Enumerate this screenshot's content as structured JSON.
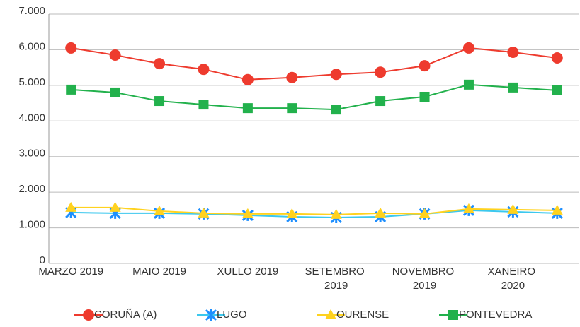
{
  "chart_data": {
    "type": "line",
    "categories": [
      "MARZO 2019",
      null,
      "MAIO 2019",
      null,
      "XULLO 2019",
      null,
      "SETEMBRO 2019",
      null,
      "NOVEMBRO 2019",
      null,
      "XANEIRO 2020",
      null
    ],
    "series": [
      {
        "name": "CORUÑA (A)",
        "color": "#ee3b2e",
        "marker": "circle",
        "values": [
          6050,
          5850,
          5610,
          5450,
          5160,
          5220,
          5310,
          5370,
          5550,
          6050,
          5930,
          5770
        ]
      },
      {
        "name": "LUGO",
        "color": "#1e8fff",
        "marker": "x",
        "values": [
          1430,
          1410,
          1410,
          1390,
          1350,
          1310,
          1290,
          1310,
          1390,
          1490,
          1450,
          1410
        ]
      },
      {
        "name": "OURENSE",
        "color": "#ffd21f",
        "marker": "triangle",
        "values": [
          1570,
          1570,
          1470,
          1410,
          1390,
          1390,
          1370,
          1410,
          1390,
          1530,
          1510,
          1490
        ]
      },
      {
        "name": "PONTEVEDRA",
        "color": "#22b14c",
        "marker": "square",
        "values": [
          4880,
          4800,
          4560,
          4460,
          4360,
          4360,
          4320,
          4560,
          4680,
          5020,
          4940,
          4860
        ]
      }
    ],
    "ylim": [
      0,
      7000
    ],
    "yticks": [
      0,
      {
        "value": 1000,
        "label": "1.000"
      },
      {
        "value": 2000,
        "label": "2.000"
      },
      {
        "value": 3000,
        "label": "3.000"
      },
      {
        "value": 4000,
        "label": "4.000"
      },
      {
        "value": 5000,
        "label": "5.000"
      },
      {
        "value": 6000,
        "label": "6.000"
      },
      {
        "value": 7000,
        "label": "7.000"
      }
    ],
    "grid": true,
    "legend": "bottom"
  }
}
